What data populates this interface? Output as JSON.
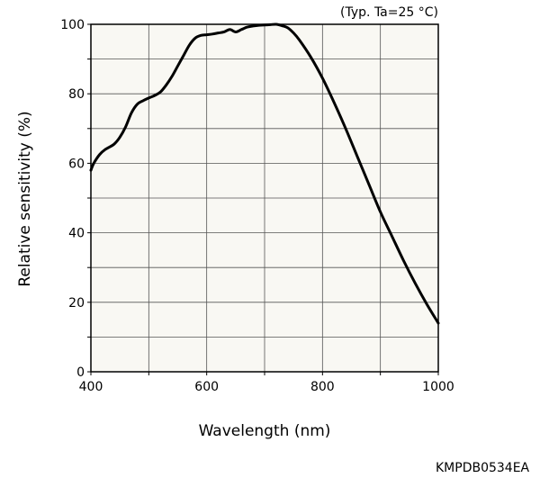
{
  "chart_data": {
    "type": "line",
    "title": "",
    "condition_note": "(Typ. Ta=25 °C)",
    "xlabel": "Wavelength (nm)",
    "ylabel": "Relative sensitivity (%)",
    "xlim": [
      400,
      1000
    ],
    "ylim": [
      0,
      100
    ],
    "x_ticks": [
      400,
      600,
      800,
      1000
    ],
    "y_ticks": [
      0,
      20,
      40,
      60,
      80,
      100
    ],
    "x_grid_step": 100,
    "y_grid_step": 10,
    "grid": true,
    "plot_background": "#f9f8f3",
    "line_color": "#000000",
    "series": [
      {
        "x": [
          400,
          405,
          415,
          425,
          440,
          450,
          460,
          470,
          480,
          490,
          500,
          510,
          520,
          530,
          540,
          550,
          560,
          570,
          580,
          590,
          600,
          610,
          620,
          630,
          640,
          650,
          660,
          670,
          680,
          690,
          700,
          710,
          720,
          730,
          740,
          750,
          760,
          780,
          800,
          820,
          840,
          860,
          880,
          900,
          920,
          940,
          960,
          980,
          1000
        ],
        "y": [
          58,
          60,
          62.5,
          64,
          65.5,
          67.5,
          70.5,
          74.5,
          77,
          78,
          78.8,
          79.5,
          80.5,
          82.5,
          85,
          88,
          91,
          94,
          96,
          96.8,
          97,
          97.2,
          97.5,
          97.8,
          98.5,
          97.8,
          98.5,
          99.2,
          99.5,
          99.7,
          99.8,
          99.9,
          100,
          99.6,
          99,
          97.5,
          95.5,
          90.5,
          84.5,
          77.5,
          70,
          62,
          54,
          46,
          39,
          32,
          25.5,
          19.5,
          14
        ]
      }
    ]
  },
  "figure_code": "KMPDB0534EA"
}
